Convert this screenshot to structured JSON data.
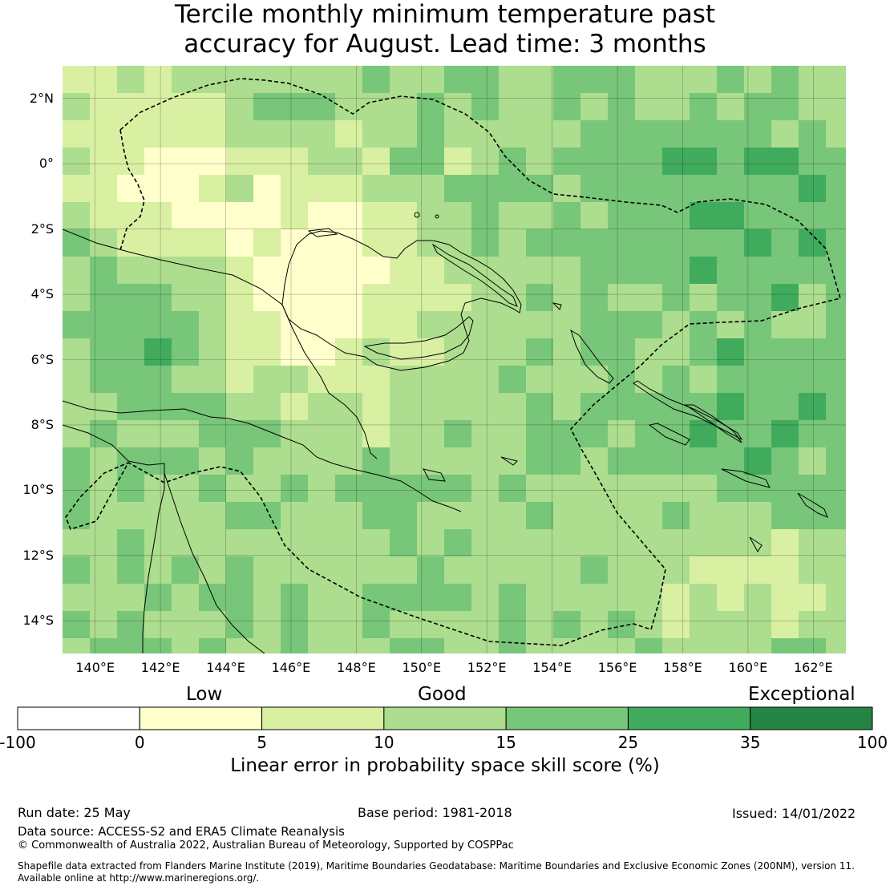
{
  "title": {
    "line1": "Tercile monthly minimum temperature past",
    "line2": "accuracy for August. Lead time: 3 months"
  },
  "map": {
    "lat_labels": [
      "2°N",
      "0°",
      "2°S",
      "4°S",
      "6°S",
      "8°S",
      "10°S",
      "12°S",
      "14°S"
    ],
    "lon_labels": [
      "140°E",
      "142°E",
      "144°E",
      "146°E",
      "148°E",
      "150°E",
      "152°E",
      "154°E",
      "156°E",
      "158°E",
      "160°E",
      "162°E"
    ],
    "extent": {
      "lon_min": 139,
      "lon_max": 163,
      "lat_min": -15,
      "lat_max": 3
    },
    "grid_res_deg": 0.833,
    "boundary_style": "dashed",
    "coastline_color": "#000000"
  },
  "colorbar": {
    "categories": {
      "low": "Low",
      "good": "Good",
      "exceptional": "Exceptional"
    },
    "ticks": [
      "-100",
      "0",
      "5",
      "10",
      "15",
      "25",
      "35",
      "100"
    ],
    "colors": [
      "#ffffff",
      "#ffffcc",
      "#d9f0a3",
      "#addd8e",
      "#78c679",
      "#41ab5d",
      "#238443"
    ],
    "label": "Linear error in probability space skill score (%)"
  },
  "footer": {
    "run_date": "Run date: 25 May",
    "base_period": "Base period: 1981-2018",
    "issued": "Issued: 14/01/2022",
    "data_source": "Data source: ACCESS-S2 and ERA5 Climate Reanalysis",
    "copyright": "© Commonwealth of Australia 2022, Australian Bureau of Meteorology, Supported by COSPPac",
    "shapefile_line1": "Shapefile data extracted from Flanders Marine Institute (2019), Maritime Boundaries Geodatabase: Maritime Boundaries and Exclusive Economic Zones (200NM), version 11.",
    "shapefile_line2": "Available online at http://www.marineregions.org/."
  }
}
